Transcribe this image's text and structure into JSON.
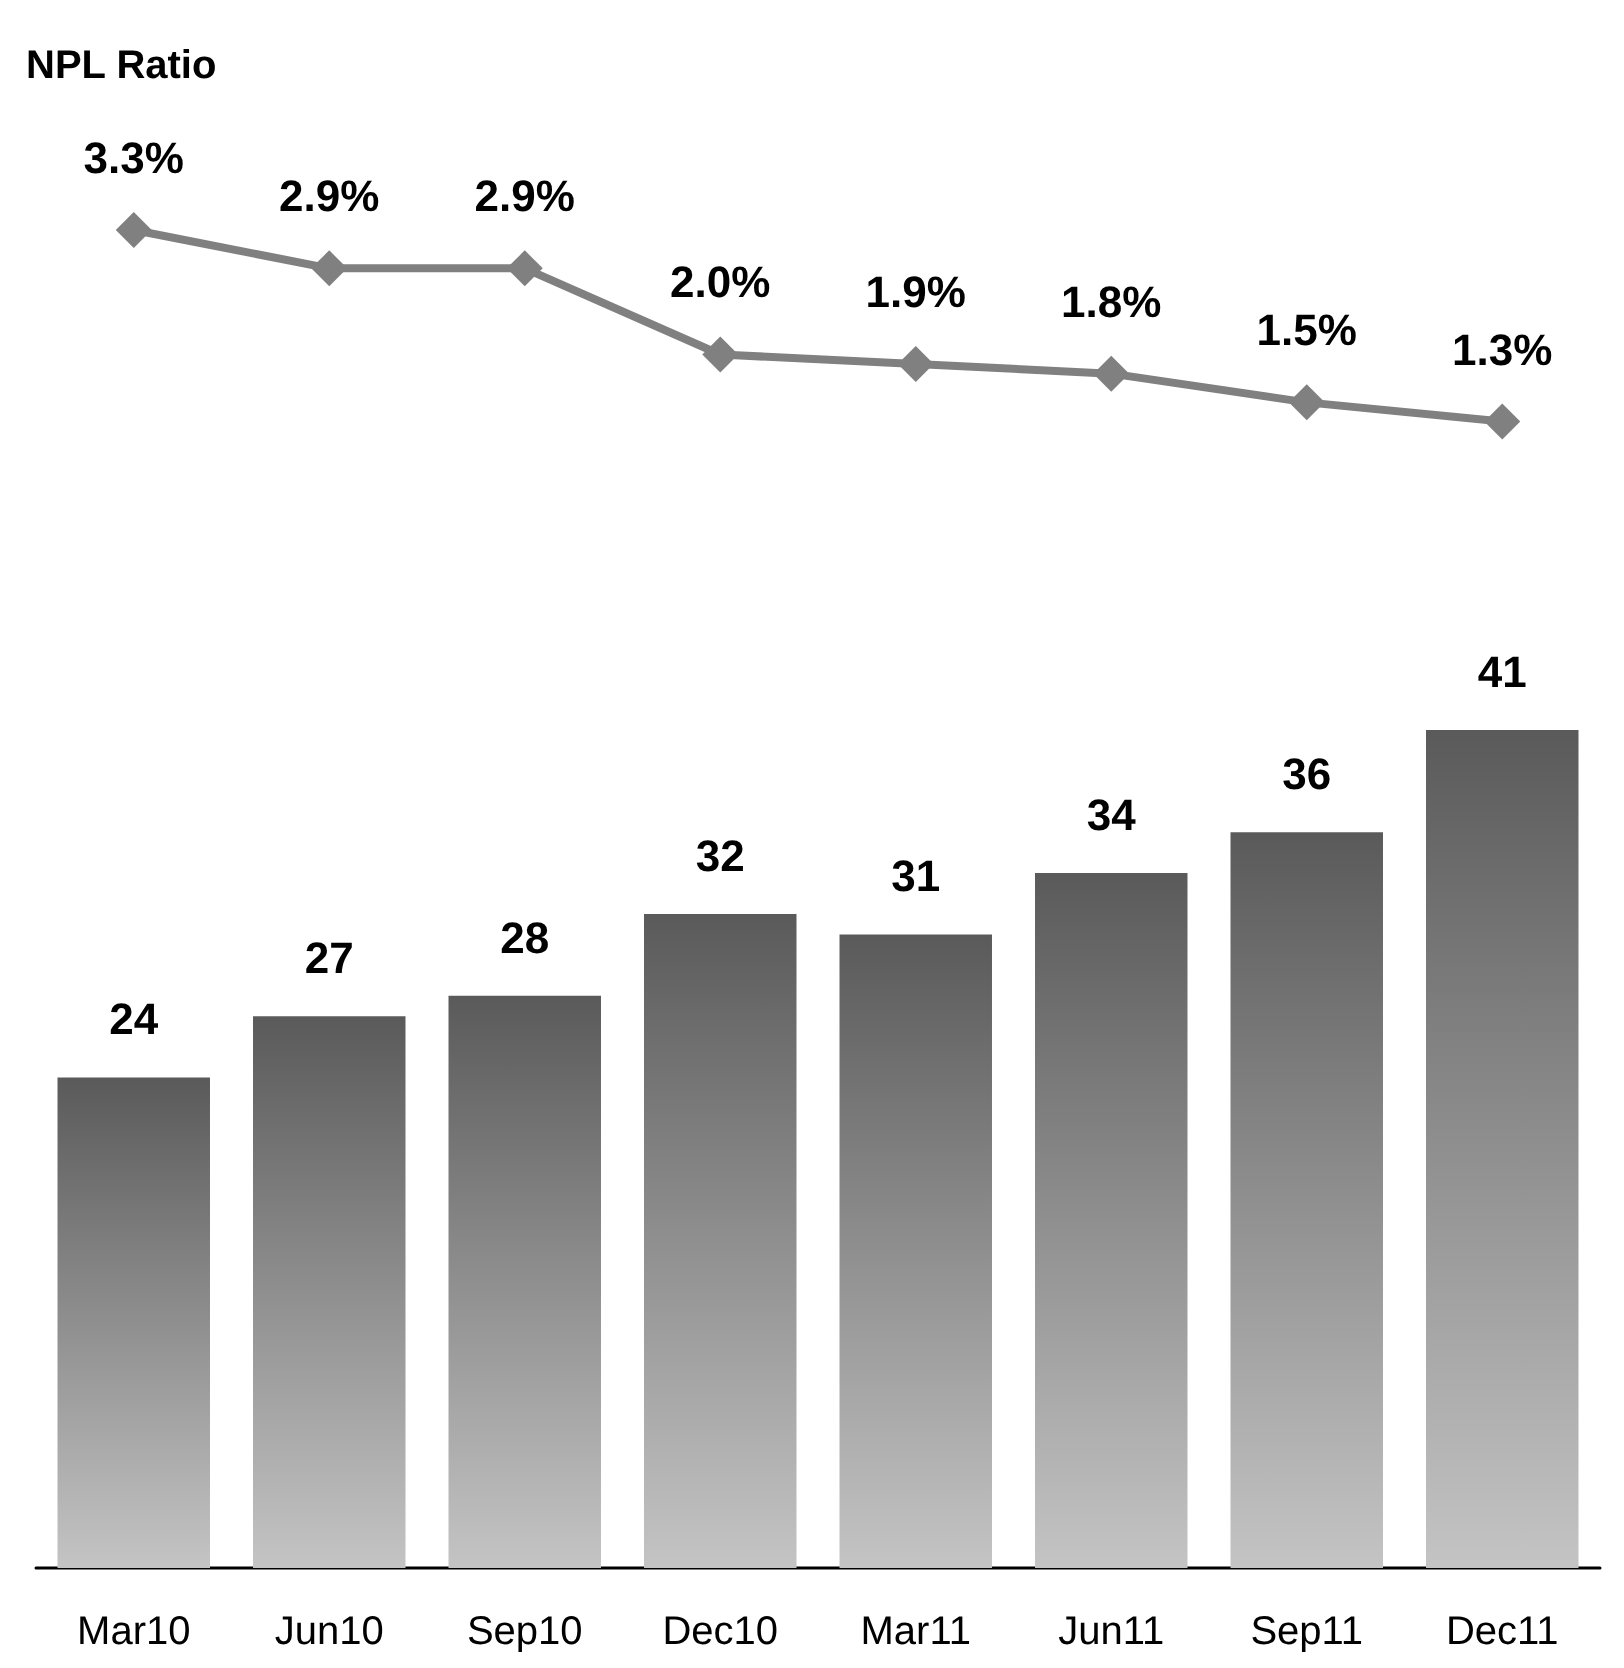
{
  "chart_data": [
    {
      "type": "line",
      "title": "NPL Ratio",
      "categories": [
        null,
        null,
        null,
        null,
        null,
        null,
        null,
        null
      ],
      "tick_labels": false,
      "marker": "diamond",
      "color": "#808080",
      "values": [
        3.3,
        2.9,
        2.9,
        2.0,
        1.9,
        1.8,
        1.5,
        1.3
      ],
      "value_labels": [
        "3.3%",
        "2.9%",
        "2.9%",
        "2.0%",
        "1.9%",
        "1.8%",
        "1.5%",
        "1.3%"
      ]
    },
    {
      "type": "bar",
      "categories": [
        "Mar10",
        "Jun10",
        "Sep10",
        "Dec10",
        "Mar11",
        "Jun11",
        "Sep11",
        "Dec11"
      ],
      "tick_labels": "x",
      "color": "#5a5a5a",
      "values": [
        24,
        27,
        28,
        32,
        31,
        34,
        36,
        41
      ],
      "data_labels": true
    }
  ]
}
